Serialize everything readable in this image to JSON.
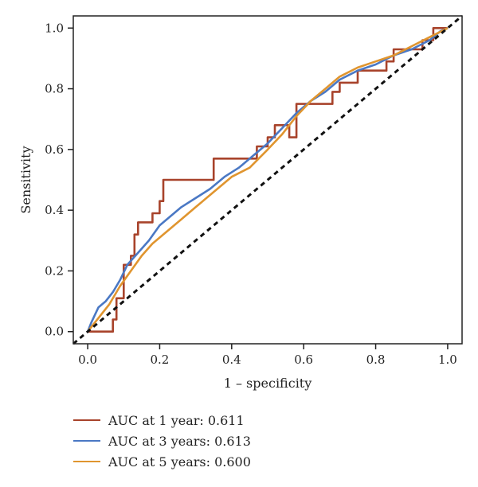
{
  "chart_data": {
    "type": "line",
    "title": "",
    "xlabel": "1 – specificity",
    "ylabel": "Sensitivity",
    "xlim": [
      -0.04,
      1.04
    ],
    "ylim": [
      -0.04,
      1.04
    ],
    "x_ticks": [
      "0.0",
      "0.2",
      "0.4",
      "0.6",
      "0.8",
      "1.0"
    ],
    "y_ticks": [
      "0.0",
      "0.2",
      "0.4",
      "0.6",
      "0.8",
      "1.0"
    ],
    "grid": false,
    "legend_position": "bottom-left",
    "reference_line": {
      "style": "dashed",
      "color": "#111111",
      "points": [
        [
          -0.04,
          -0.04
        ],
        [
          1.04,
          1.04
        ]
      ]
    },
    "series": [
      {
        "name": "AUC at 1 year: 0.611",
        "color": "#A8432B",
        "step": true,
        "points": [
          [
            0,
            0
          ],
          [
            0.07,
            0
          ],
          [
            0.07,
            0.04
          ],
          [
            0.08,
            0.04
          ],
          [
            0.08,
            0.11
          ],
          [
            0.1,
            0.11
          ],
          [
            0.1,
            0.18
          ],
          [
            0.1,
            0.22
          ],
          [
            0.12,
            0.22
          ],
          [
            0.12,
            0.25
          ],
          [
            0.13,
            0.25
          ],
          [
            0.13,
            0.32
          ],
          [
            0.14,
            0.32
          ],
          [
            0.14,
            0.36
          ],
          [
            0.18,
            0.36
          ],
          [
            0.18,
            0.39
          ],
          [
            0.2,
            0.39
          ],
          [
            0.2,
            0.43
          ],
          [
            0.21,
            0.43
          ],
          [
            0.21,
            0.5
          ],
          [
            0.35,
            0.5
          ],
          [
            0.35,
            0.57
          ],
          [
            0.47,
            0.57
          ],
          [
            0.47,
            0.61
          ],
          [
            0.5,
            0.61
          ],
          [
            0.5,
            0.64
          ],
          [
            0.52,
            0.64
          ],
          [
            0.52,
            0.68
          ],
          [
            0.56,
            0.68
          ],
          [
            0.56,
            0.64
          ],
          [
            0.58,
            0.64
          ],
          [
            0.58,
            0.71
          ],
          [
            0.58,
            0.75
          ],
          [
            0.68,
            0.75
          ],
          [
            0.68,
            0.79
          ],
          [
            0.7,
            0.79
          ],
          [
            0.7,
            0.82
          ],
          [
            0.75,
            0.82
          ],
          [
            0.75,
            0.86
          ],
          [
            0.83,
            0.86
          ],
          [
            0.83,
            0.89
          ],
          [
            0.85,
            0.89
          ],
          [
            0.85,
            0.93
          ],
          [
            0.93,
            0.93
          ],
          [
            0.93,
            0.96
          ],
          [
            0.96,
            0.96
          ],
          [
            0.96,
            1.0
          ],
          [
            1.0,
            1.0
          ]
        ]
      },
      {
        "name": "AUC at 3 years: 0.613",
        "color": "#4A78C4",
        "step": false,
        "points": [
          [
            0,
            0
          ],
          [
            0.01,
            0.03
          ],
          [
            0.03,
            0.08
          ],
          [
            0.05,
            0.1
          ],
          [
            0.07,
            0.13
          ],
          [
            0.09,
            0.17
          ],
          [
            0.11,
            0.22
          ],
          [
            0.14,
            0.26
          ],
          [
            0.17,
            0.3
          ],
          [
            0.2,
            0.35
          ],
          [
            0.23,
            0.38
          ],
          [
            0.26,
            0.41
          ],
          [
            0.3,
            0.44
          ],
          [
            0.34,
            0.47
          ],
          [
            0.38,
            0.51
          ],
          [
            0.42,
            0.54
          ],
          [
            0.46,
            0.58
          ],
          [
            0.5,
            0.62
          ],
          [
            0.54,
            0.67
          ],
          [
            0.58,
            0.72
          ],
          [
            0.62,
            0.76
          ],
          [
            0.66,
            0.79
          ],
          [
            0.7,
            0.83
          ],
          [
            0.75,
            0.86
          ],
          [
            0.8,
            0.88
          ],
          [
            0.85,
            0.91
          ],
          [
            0.9,
            0.93
          ],
          [
            0.95,
            0.96
          ],
          [
            0.98,
            0.99
          ],
          [
            1.0,
            1.0
          ]
        ]
      },
      {
        "name": "AUC at 5 years: 0.600",
        "color": "#E0952F",
        "step": false,
        "points": [
          [
            0,
            0
          ],
          [
            0.02,
            0.03
          ],
          [
            0.04,
            0.06
          ],
          [
            0.06,
            0.09
          ],
          [
            0.09,
            0.15
          ],
          [
            0.12,
            0.2
          ],
          [
            0.15,
            0.25
          ],
          [
            0.18,
            0.29
          ],
          [
            0.22,
            0.33
          ],
          [
            0.26,
            0.37
          ],
          [
            0.3,
            0.41
          ],
          [
            0.35,
            0.46
          ],
          [
            0.4,
            0.51
          ],
          [
            0.45,
            0.54
          ],
          [
            0.5,
            0.6
          ],
          [
            0.54,
            0.65
          ],
          [
            0.58,
            0.71
          ],
          [
            0.62,
            0.76
          ],
          [
            0.66,
            0.8
          ],
          [
            0.7,
            0.84
          ],
          [
            0.75,
            0.87
          ],
          [
            0.8,
            0.89
          ],
          [
            0.85,
            0.91
          ],
          [
            0.9,
            0.94
          ],
          [
            0.95,
            0.97
          ],
          [
            1.0,
            1.0
          ]
        ]
      }
    ]
  },
  "legend": {
    "items": [
      {
        "label": "AUC at 1 year: 0.611",
        "color": "#A8432B"
      },
      {
        "label": "AUC at 3 years: 0.613",
        "color": "#4A78C4"
      },
      {
        "label": "AUC at 5 years: 0.600",
        "color": "#E0952F"
      }
    ]
  }
}
